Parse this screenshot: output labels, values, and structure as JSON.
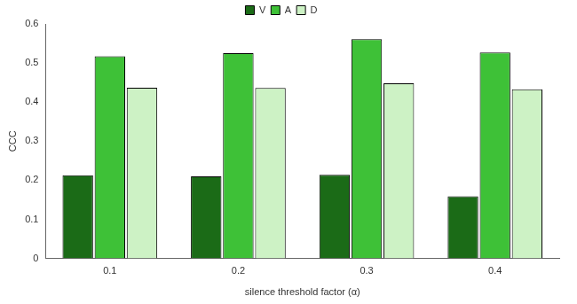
{
  "chart_data": {
    "type": "bar",
    "categories": [
      "0.1",
      "0.2",
      "0.3",
      "0.4"
    ],
    "series": [
      {
        "name": "V",
        "color": "#1b6b17",
        "values": [
          0.213,
          0.21,
          0.214,
          0.159
        ]
      },
      {
        "name": "A",
        "color": "#3ec137",
        "values": [
          0.517,
          0.525,
          0.561,
          0.527
        ]
      },
      {
        "name": "D",
        "color": "#cdf2c5",
        "values": [
          0.437,
          0.436,
          0.448,
          0.433
        ]
      }
    ],
    "x_label": "silence threshold factor (α)",
    "y_label": "CCC",
    "ylim": [
      0,
      0.6
    ],
    "yticks": [
      0,
      0.1,
      0.2,
      0.3,
      0.4,
      0.5,
      0.6
    ],
    "grid": false,
    "legend": "top"
  }
}
